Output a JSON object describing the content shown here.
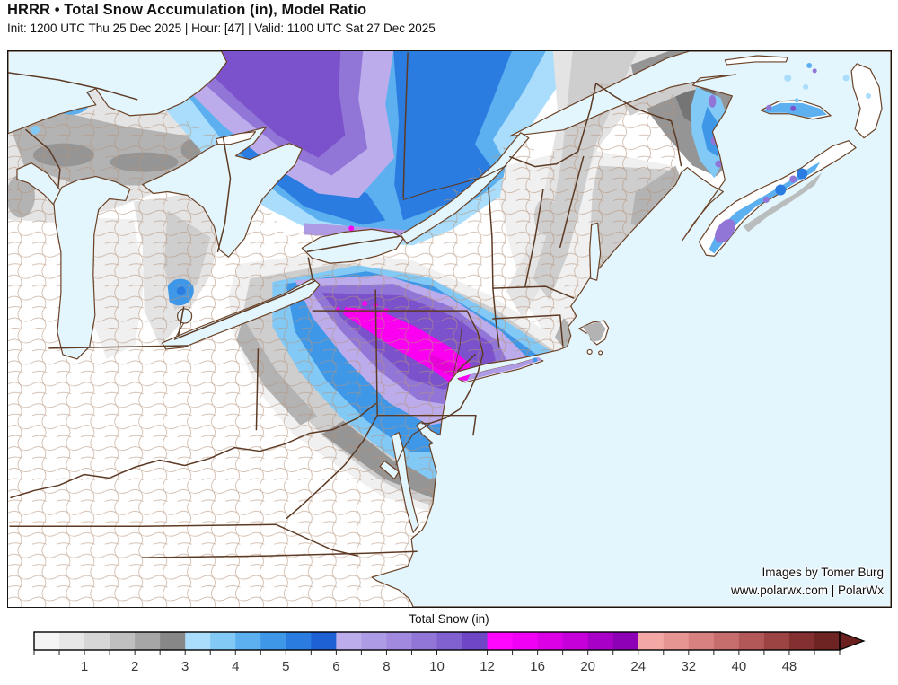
{
  "header": {
    "title": "HRRR • Total Snow Accumulation (in), Model Ratio",
    "subtitle": "Init: 1200 UTC Thu 25 Dec 2025 | Hour: [47] | Valid: 1100 UTC Sat 27 Dec 2025"
  },
  "attribution": {
    "line1": "Images by Tomer Burg",
    "line2": "www.polarwx.com | PolarWx"
  },
  "colorbar": {
    "title": "Total Snow (in)",
    "tick_labels": [
      "1",
      "2",
      "3",
      "4",
      "5",
      "6",
      "8",
      "10",
      "12",
      "16",
      "20",
      "24",
      "32",
      "40",
      "48"
    ],
    "segments": [
      "#f4f4f4",
      "#e7e7e7",
      "#d6d6d6",
      "#bfbfbf",
      "#a6a6a6",
      "#878787",
      "#a9ddfb",
      "#82c9f6",
      "#5cb0f0",
      "#3f97e8",
      "#2a7ce0",
      "#1d61d5",
      "#bcaceb",
      "#ae9be5",
      "#a089df",
      "#9176d8",
      "#8160d0",
      "#6f47c6",
      "#fd08fd",
      "#f000f4",
      "#dc00e6",
      "#c500d8",
      "#a900c8",
      "#8d00b5",
      "#f4a8a5",
      "#e69593",
      "#d78181",
      "#c66d6d",
      "#b25858",
      "#9c4343",
      "#853030",
      "#6f2424"
    ],
    "arrow_color": "#6b2020",
    "outline_color": "#000000",
    "tick_color": "#222222"
  },
  "map": {
    "water_color": "#e3f6fd",
    "land_color": "#ffffff",
    "county_line_color": "#b5937b",
    "state_border_color": "#5c3a24",
    "coast_color": "#6b4226",
    "frame_color": "#141414"
  },
  "chart_data": {
    "type": "heatmap",
    "title": "HRRR • Total Snow Accumulation (in), Model Ratio",
    "colorbar_title": "Total Snow (in)",
    "units": "inches",
    "scale_tick_values_in": [
      1,
      2,
      3,
      4,
      5,
      6,
      8,
      10,
      12,
      16,
      20,
      24,
      32,
      40,
      48
    ],
    "scale_bands": [
      {
        "range_in": "0-3",
        "color_family": "grays"
      },
      {
        "range_in": "3-6",
        "color_family": "blues"
      },
      {
        "range_in": "6-12",
        "color_family": "purples"
      },
      {
        "range_in": "12-24",
        "color_family": "magentas"
      },
      {
        "range_in": "24-48+",
        "color_family": "dark reds"
      }
    ],
    "notable_regions": [
      {
        "region": "Central NY through Catskills to NYC/Long Island",
        "max_in": "12-16"
      },
      {
        "region": "Central Ontario north of Lake Huron",
        "max_in": "12-14"
      },
      {
        "region": "Toronto / Lake Ontario north shore",
        "max_in": "10-14"
      },
      {
        "region": "Eastern New Brunswick / PEI / Nova Scotia",
        "max_in": "6-10"
      },
      {
        "region": "Upper Michigan / Wisconsin",
        "max_in": "2-3"
      },
      {
        "region": "Northern New England",
        "max_in": "1-3"
      },
      {
        "region": "Ohio Valley / Virginia / Carolinas",
        "max_in": "0"
      }
    ]
  }
}
